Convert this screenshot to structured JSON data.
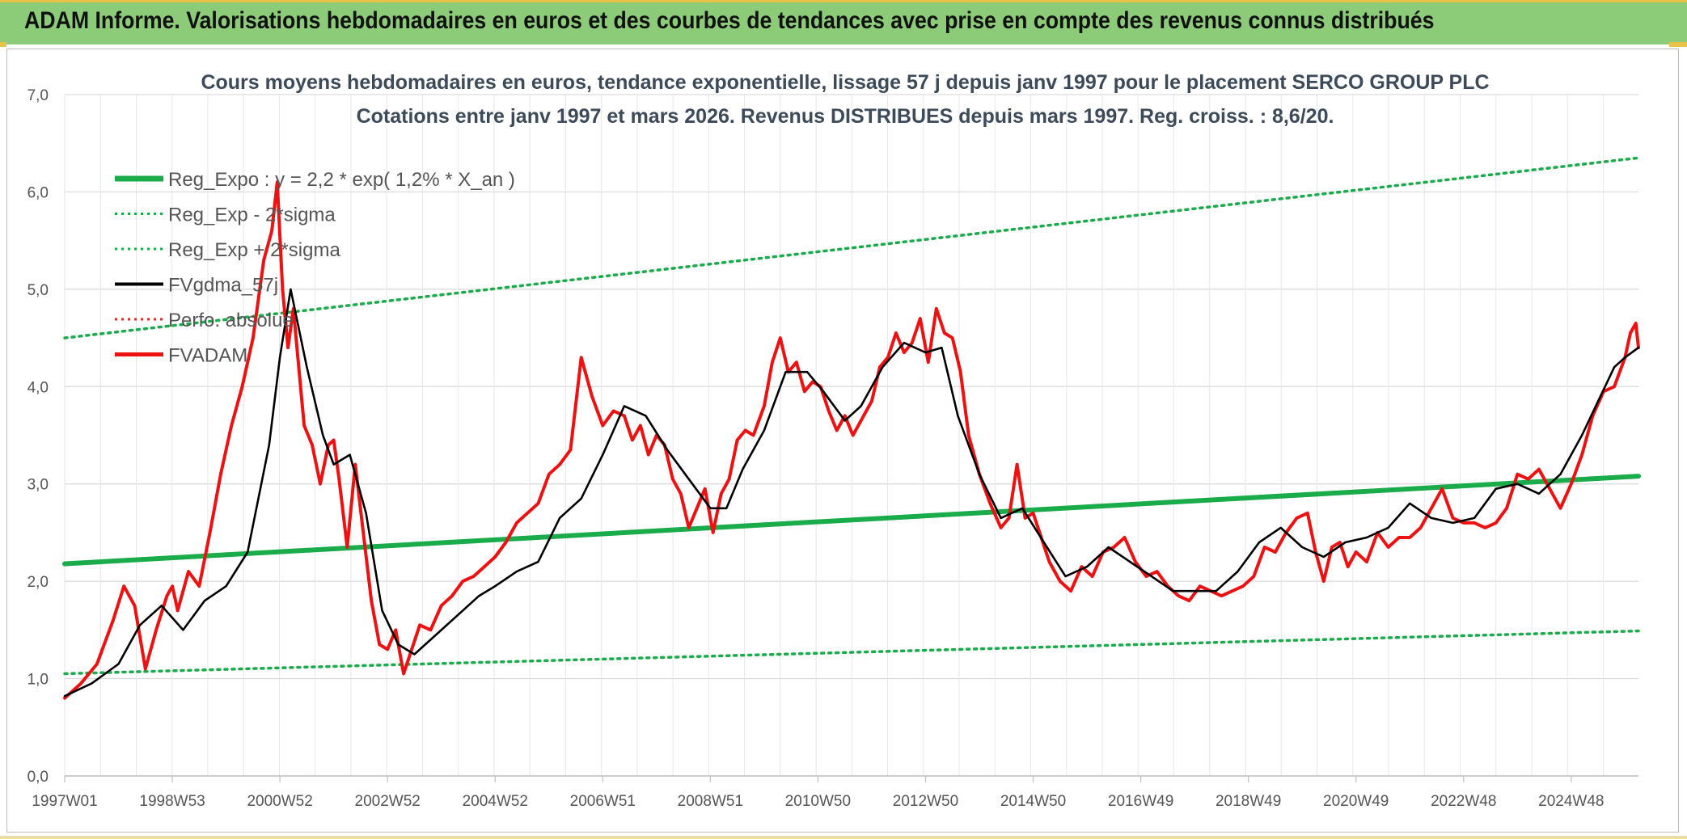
{
  "banner": {
    "title": "ADAM Informe. Valorisations hebdomadaires en euros et des courbes de tendances avec prise en compte des revenus connus distribués"
  },
  "chart_data": {
    "type": "line",
    "title": "Cours moyens hebdomadaires en euros, tendance exponentielle, lissage 57 j depuis janv 1997 pour le placement SERCO GROUP PLC",
    "subtitle": "Cotations entre janv 1997 et mars 2026. Revenus DISTRIBUES depuis mars 1997. Reg. croiss. : 8,6/20.",
    "xlabel": "",
    "ylabel": "",
    "ylim": [
      0,
      7
    ],
    "xlim": [
      1997.0,
      2026.25
    ],
    "grid": true,
    "legend_position": "top-left",
    "y_ticks": [
      "0,0",
      "1,0",
      "2,0",
      "3,0",
      "4,0",
      "5,0",
      "6,0",
      "7,0"
    ],
    "x_ticks": [
      {
        "label": "1997W01",
        "x": 1997.0
      },
      {
        "label": "1998W53",
        "x": 1999.0
      },
      {
        "label": "2000W52",
        "x": 2001.0
      },
      {
        "label": "2002W52",
        "x": 2003.0
      },
      {
        "label": "2004W52",
        "x": 2005.0
      },
      {
        "label": "2006W51",
        "x": 2007.0
      },
      {
        "label": "2008W51",
        "x": 2009.0
      },
      {
        "label": "2010W50",
        "x": 2011.0
      },
      {
        "label": "2012W50",
        "x": 2013.0
      },
      {
        "label": "2014W50",
        "x": 2015.0
      },
      {
        "label": "2016W49",
        "x": 2017.0
      },
      {
        "label": "2018W49",
        "x": 2019.0
      },
      {
        "label": "2020W49",
        "x": 2021.0
      },
      {
        "label": "2022W48",
        "x": 2023.0
      },
      {
        "label": "2024W48",
        "x": 2025.0
      }
    ],
    "series": [
      {
        "name": "Reg_Expo : y = 2,2 * exp( 1,2% *  X_an )",
        "color": "#1aab4b",
        "style": "solid-thick",
        "x": [
          1997.0,
          2026.25
        ],
        "y": [
          2.18,
          3.08
        ]
      },
      {
        "name": "Reg_Exp - 2*sigma",
        "color": "#1aab4b",
        "style": "dotted",
        "x": [
          1997.0,
          2026.25
        ],
        "y": [
          1.05,
          1.49
        ]
      },
      {
        "name": "Reg_Exp + 2*sigma",
        "color": "#1aab4b",
        "style": "dotted",
        "x": [
          1997.0,
          2026.25
        ],
        "y": [
          4.5,
          6.35
        ]
      },
      {
        "name": "FVgdma_57j",
        "color": "#000000",
        "style": "solid",
        "x": [
          1997.0,
          1997.5,
          1998.0,
          1998.4,
          1998.8,
          1999.2,
          1999.6,
          2000.0,
          2000.4,
          2000.8,
          2001.0,
          2001.2,
          2001.5,
          2001.8,
          2002.0,
          2002.3,
          2002.6,
          2002.9,
          2003.2,
          2003.5,
          2003.9,
          2004.3,
          2004.7,
          2005.0,
          2005.4,
          2005.8,
          2006.2,
          2006.6,
          2007.0,
          2007.4,
          2007.8,
          2008.2,
          2008.6,
          2009.0,
          2009.3,
          2009.6,
          2010.0,
          2010.4,
          2010.8,
          2011.1,
          2011.5,
          2011.8,
          2012.2,
          2012.6,
          2013.0,
          2013.3,
          2013.6,
          2014.0,
          2014.4,
          2014.8,
          2015.2,
          2015.6,
          2016.0,
          2016.4,
          2016.8,
          2017.2,
          2017.6,
          2018.0,
          2018.4,
          2018.8,
          2019.2,
          2019.6,
          2020.0,
          2020.4,
          2020.8,
          2021.2,
          2021.6,
          2022.0,
          2022.4,
          2022.8,
          2023.2,
          2023.6,
          2024.0,
          2024.4,
          2024.8,
          2025.2,
          2025.5,
          2025.8,
          2026.0,
          2026.25
        ],
        "y": [
          0.82,
          0.95,
          1.15,
          1.55,
          1.75,
          1.5,
          1.8,
          1.95,
          2.3,
          3.4,
          4.3,
          5.0,
          4.2,
          3.5,
          3.2,
          3.3,
          2.7,
          1.7,
          1.35,
          1.25,
          1.45,
          1.65,
          1.85,
          1.95,
          2.1,
          2.2,
          2.65,
          2.85,
          3.3,
          3.8,
          3.7,
          3.35,
          3.05,
          2.75,
          2.75,
          3.15,
          3.55,
          4.15,
          4.15,
          3.95,
          3.65,
          3.8,
          4.2,
          4.45,
          4.35,
          4.4,
          3.7,
          3.1,
          2.65,
          2.75,
          2.4,
          2.05,
          2.15,
          2.35,
          2.2,
          2.05,
          1.9,
          1.9,
          1.9,
          2.1,
          2.4,
          2.55,
          2.35,
          2.25,
          2.4,
          2.45,
          2.55,
          2.8,
          2.65,
          2.6,
          2.65,
          2.95,
          3.0,
          2.9,
          3.1,
          3.5,
          3.85,
          4.2,
          4.3,
          4.4
        ]
      },
      {
        "name": "Perfo. absolue",
        "color": "#d03030",
        "style": "dotted",
        "x": [],
        "y": []
      },
      {
        "name": "FVADAM",
        "color": "#ee1111",
        "style": "solid-thick",
        "x": [
          1997.0,
          1997.3,
          1997.6,
          1997.9,
          1998.1,
          1998.3,
          1998.5,
          1998.7,
          1998.9,
          1999.0,
          1999.1,
          1999.3,
          1999.5,
          1999.7,
          1999.9,
          2000.1,
          2000.3,
          2000.5,
          2000.7,
          2000.85,
          2000.95,
          2001.05,
          2001.15,
          2001.25,
          2001.35,
          2001.45,
          2001.6,
          2001.75,
          2001.9,
          2002.0,
          2002.1,
          2002.25,
          2002.4,
          2002.55,
          2002.7,
          2002.85,
          2003.0,
          2003.15,
          2003.3,
          2003.45,
          2003.6,
          2003.8,
          2004.0,
          2004.2,
          2004.4,
          2004.6,
          2004.8,
          2005.0,
          2005.2,
          2005.4,
          2005.6,
          2005.8,
          2006.0,
          2006.2,
          2006.4,
          2006.6,
          2006.8,
          2007.0,
          2007.2,
          2007.4,
          2007.55,
          2007.7,
          2007.85,
          2008.0,
          2008.15,
          2008.3,
          2008.45,
          2008.6,
          2008.75,
          2008.9,
          2009.05,
          2009.2,
          2009.35,
          2009.5,
          2009.65,
          2009.8,
          2010.0,
          2010.15,
          2010.3,
          2010.45,
          2010.6,
          2010.75,
          2010.9,
          2011.05,
          2011.2,
          2011.35,
          2011.5,
          2011.65,
          2011.8,
          2012.0,
          2012.15,
          2012.3,
          2012.45,
          2012.6,
          2012.75,
          2012.9,
          2013.05,
          2013.2,
          2013.35,
          2013.5,
          2013.65,
          2013.8,
          2014.0,
          2014.2,
          2014.4,
          2014.55,
          2014.7,
          2014.85,
          2015.0,
          2015.15,
          2015.3,
          2015.5,
          2015.7,
          2015.9,
          2016.1,
          2016.3,
          2016.5,
          2016.7,
          2016.9,
          2017.1,
          2017.3,
          2017.5,
          2017.7,
          2017.9,
          2018.1,
          2018.3,
          2018.5,
          2018.7,
          2018.9,
          2019.1,
          2019.3,
          2019.5,
          2019.7,
          2019.9,
          2020.1,
          2020.25,
          2020.4,
          2020.55,
          2020.7,
          2020.85,
          2021.0,
          2021.2,
          2021.4,
          2021.6,
          2021.8,
          2022.0,
          2022.2,
          2022.4,
          2022.6,
          2022.8,
          2023.0,
          2023.2,
          2023.4,
          2023.6,
          2023.8,
          2024.0,
          2024.2,
          2024.4,
          2024.6,
          2024.8,
          2025.0,
          2025.2,
          2025.4,
          2025.6,
          2025.8,
          2026.0,
          2026.1,
          2026.2,
          2026.25
        ],
        "y": [
          0.8,
          0.95,
          1.15,
          1.6,
          1.95,
          1.75,
          1.1,
          1.5,
          1.85,
          1.95,
          1.7,
          2.1,
          1.95,
          2.5,
          3.1,
          3.6,
          4.0,
          4.5,
          5.3,
          5.6,
          6.1,
          5.0,
          4.4,
          4.8,
          4.2,
          3.6,
          3.4,
          3.0,
          3.4,
          3.45,
          3.05,
          2.35,
          3.2,
          2.5,
          1.8,
          1.35,
          1.3,
          1.5,
          1.05,
          1.3,
          1.55,
          1.5,
          1.75,
          1.85,
          2.0,
          2.05,
          2.15,
          2.25,
          2.4,
          2.6,
          2.7,
          2.8,
          3.1,
          3.2,
          3.35,
          4.3,
          3.9,
          3.6,
          3.75,
          3.7,
          3.45,
          3.6,
          3.3,
          3.5,
          3.4,
          3.05,
          2.9,
          2.55,
          2.75,
          2.95,
          2.5,
          2.9,
          3.05,
          3.45,
          3.55,
          3.5,
          3.8,
          4.25,
          4.5,
          4.15,
          4.25,
          3.95,
          4.05,
          4.0,
          3.75,
          3.55,
          3.7,
          3.5,
          3.65,
          3.85,
          4.2,
          4.3,
          4.55,
          4.35,
          4.45,
          4.7,
          4.25,
          4.8,
          4.55,
          4.5,
          4.15,
          3.5,
          3.1,
          2.8,
          2.55,
          2.65,
          3.2,
          2.65,
          2.7,
          2.45,
          2.2,
          2.0,
          1.9,
          2.15,
          2.05,
          2.3,
          2.35,
          2.45,
          2.2,
          2.05,
          2.1,
          1.95,
          1.85,
          1.8,
          1.95,
          1.9,
          1.85,
          1.9,
          1.95,
          2.05,
          2.35,
          2.3,
          2.5,
          2.65,
          2.7,
          2.3,
          2.0,
          2.35,
          2.4,
          2.15,
          2.3,
          2.2,
          2.5,
          2.35,
          2.45,
          2.45,
          2.55,
          2.75,
          2.95,
          2.65,
          2.6,
          2.6,
          2.55,
          2.6,
          2.75,
          3.1,
          3.05,
          3.15,
          2.95,
          2.75,
          3.0,
          3.3,
          3.7,
          3.95,
          4.0,
          4.3,
          4.55,
          4.65,
          4.4
        ]
      }
    ]
  }
}
